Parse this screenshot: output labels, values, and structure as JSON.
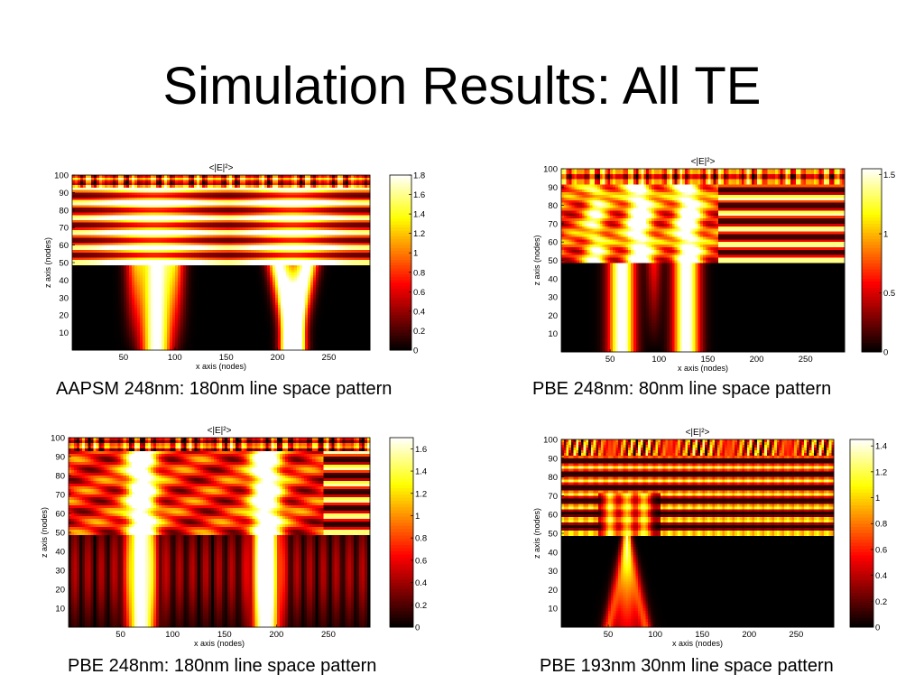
{
  "slide": {
    "title": "Simulation Results: All TE"
  },
  "chart_data": [
    {
      "type": "heatmap",
      "title": "<|E|²>",
      "xlabel": "x axis (nodes)",
      "ylabel": "z axis (nodes)",
      "xticks": [
        50,
        100,
        150,
        200,
        250
      ],
      "yticks": [
        10,
        20,
        30,
        40,
        50,
        60,
        70,
        80,
        90,
        100
      ],
      "xlim": [
        0,
        290
      ],
      "ylim": [
        0,
        100
      ],
      "colorbar": {
        "min": 0,
        "max": 1.8,
        "ticks": [
          0,
          0.2,
          0.4,
          0.6,
          0.8,
          1,
          1.2,
          1.4,
          1.6,
          1.8
        ]
      },
      "caption": "AAPSM 248nm: 180nm line space pattern",
      "variant": "aapsm248"
    },
    {
      "type": "heatmap",
      "title": "<|E|²>",
      "xlabel": "x axis (nodes)",
      "ylabel": "z axis (nodes)",
      "xticks": [
        50,
        100,
        150,
        200,
        250
      ],
      "yticks": [
        10,
        20,
        30,
        40,
        50,
        60,
        70,
        80,
        90,
        100
      ],
      "xlim": [
        0,
        290
      ],
      "ylim": [
        0,
        100
      ],
      "colorbar": {
        "min": 0,
        "max": 1.55,
        "ticks": [
          0,
          0.5,
          1,
          1.5
        ]
      },
      "caption": "PBE  248nm: 80nm line space pattern",
      "variant": "pbe248_80"
    },
    {
      "type": "heatmap",
      "title": "<|E|²>",
      "xlabel": "x axis (nodes)",
      "ylabel": "z axis (nodes)",
      "xticks": [
        50,
        100,
        150,
        200,
        250
      ],
      "yticks": [
        10,
        20,
        30,
        40,
        50,
        60,
        70,
        80,
        90,
        100
      ],
      "xlim": [
        0,
        290
      ],
      "ylim": [
        0,
        100
      ],
      "colorbar": {
        "min": 0,
        "max": 1.7,
        "ticks": [
          0,
          0.2,
          0.4,
          0.6,
          0.8,
          1,
          1.2,
          1.4,
          1.6
        ]
      },
      "caption": "PBE 248nm: 180nm line space pattern",
      "variant": "pbe248_180"
    },
    {
      "type": "heatmap",
      "title": "<|E|²>",
      "xlabel": "x axis (nodes)",
      "ylabel": "z axis (nodes)",
      "xticks": [
        50,
        100,
        150,
        200,
        250
      ],
      "yticks": [
        10,
        20,
        30,
        40,
        50,
        60,
        70,
        80,
        90,
        100
      ],
      "xlim": [
        0,
        290
      ],
      "ylim": [
        0,
        100
      ],
      "colorbar": {
        "min": 0,
        "max": 1.45,
        "ticks": [
          0,
          0.2,
          0.4,
          0.6,
          0.8,
          1,
          1.2,
          1.4
        ]
      },
      "caption": "PBE 193nm 30nm line space pattern",
      "variant": "pbe193_30"
    }
  ]
}
